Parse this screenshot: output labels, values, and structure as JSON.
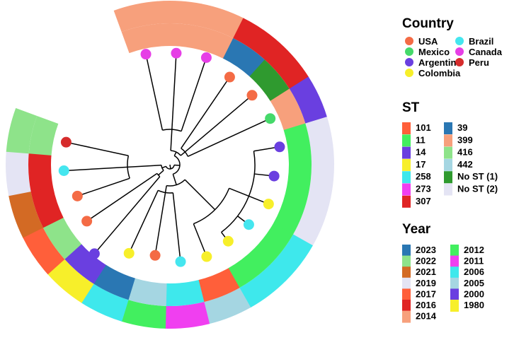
{
  "legend": {
    "country": {
      "title": "Country",
      "items": [
        {
          "label": "USA",
          "color": "#f46b45"
        },
        {
          "label": "Mexico",
          "color": "#45d96a"
        },
        {
          "label": "Argentina",
          "color": "#6a3fe0"
        },
        {
          "label": "Colombia",
          "color": "#f7ef2a"
        },
        {
          "label": "Brazil",
          "color": "#45e6ef"
        },
        {
          "label": "Canada",
          "color": "#e63fe6"
        },
        {
          "label": "Peru",
          "color": "#d62c2c"
        }
      ]
    },
    "st": {
      "title": "ST",
      "items": [
        {
          "label": "101",
          "color": "#ff5f3a"
        },
        {
          "label": "11",
          "color": "#42ef5f"
        },
        {
          "label": "14",
          "color": "#6a3fe0"
        },
        {
          "label": "17",
          "color": "#f7ef2a"
        },
        {
          "label": "258",
          "color": "#3ee8ec"
        },
        {
          "label": "273",
          "color": "#f03ff0"
        },
        {
          "label": "307",
          "color": "#e02424"
        },
        {
          "label": "39",
          "color": "#2a77b3"
        },
        {
          "label": "399",
          "color": "#f7a07c"
        },
        {
          "label": "416",
          "color": "#8ee38a"
        },
        {
          "label": "442",
          "color": "#a5d6e2"
        },
        {
          "label": "No ST (1)",
          "color": "#2f9a2f"
        },
        {
          "label": "No ST (2)",
          "color": "#e4e4f4"
        }
      ]
    },
    "year": {
      "title": "Year",
      "items": [
        {
          "label": "2023",
          "color": "#2a77b3"
        },
        {
          "label": "2022",
          "color": "#8ee38a"
        },
        {
          "label": "2021",
          "color": "#d36a24"
        },
        {
          "label": "2019",
          "color": "#e4e4f4"
        },
        {
          "label": "2017",
          "color": "#ff5f3a"
        },
        {
          "label": "2016",
          "color": "#e02424"
        },
        {
          "label": "2014",
          "color": "#f7a07c"
        },
        {
          "label": "2012",
          "color": "#42ef5f"
        },
        {
          "label": "2011",
          "color": "#f03ff0"
        },
        {
          "label": "2006",
          "color": "#3ee8ec"
        },
        {
          "label": "2005",
          "color": "#a5d6e2"
        },
        {
          "label": "2000",
          "color": "#6a3fe0"
        },
        {
          "label": "1980",
          "color": "#f7ef2a"
        }
      ]
    }
  },
  "tree": {
    "tips": [
      {
        "country": "Canada",
        "st": "399",
        "year": "2014"
      },
      {
        "country": "Canada",
        "st": "399",
        "year": "2014"
      },
      {
        "country": "Canada",
        "st": "399",
        "year": "2014"
      },
      {
        "country": "USA",
        "st": "39",
        "year": "2016"
      },
      {
        "country": "USA",
        "st": "No ST (1)",
        "year": "2016"
      },
      {
        "country": "Mexico",
        "st": "399",
        "year": "2000"
      },
      {
        "country": "Argentina",
        "st": "11",
        "year": "2019"
      },
      {
        "country": "Argentina",
        "st": "11",
        "year": "2019"
      },
      {
        "country": "Colombia",
        "st": "11",
        "year": "2019"
      },
      {
        "country": "Brazil",
        "st": "11",
        "year": "2006"
      },
      {
        "country": "Colombia",
        "st": "11",
        "year": "2006"
      },
      {
        "country": "Colombia",
        "st": "101",
        "year": "2005"
      },
      {
        "country": "Brazil",
        "st": "258",
        "year": "2011"
      },
      {
        "country": "USA",
        "st": "442",
        "year": "2012"
      },
      {
        "country": "Colombia",
        "st": "39",
        "year": "2006"
      },
      {
        "country": "Argentina",
        "st": "14",
        "year": "1980"
      },
      {
        "country": "USA",
        "st": "416",
        "year": "2017"
      },
      {
        "country": "USA",
        "st": "307",
        "year": "2021"
      },
      {
        "country": "Brazil",
        "st": "307",
        "year": "2019"
      },
      {
        "country": "Peru",
        "st": "416",
        "year": "2022"
      }
    ]
  }
}
